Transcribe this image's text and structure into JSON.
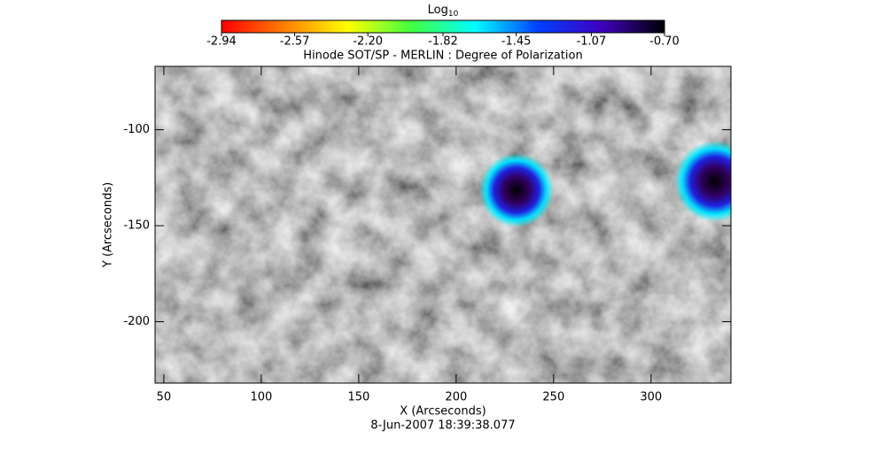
{
  "chart_data": {
    "type": "heatmap",
    "title": "Hinode SOT/SP - MERLIN : Degree of Polarization",
    "subtitle": "8-Jun-2007 18:39:38.077",
    "x_label": "X (Arcseconds)",
    "y_label": "Y (Arcseconds)",
    "xlim": [
      45.5,
      341
    ],
    "ylim": [
      -232,
      -67
    ],
    "xticks": [
      50,
      100,
      150,
      200,
      250,
      300
    ],
    "yticks": [
      -100,
      -150,
      -200
    ],
    "colorbar": {
      "label": "Log",
      "label_subscript": "10",
      "range": [
        -2.94,
        -0.7
      ],
      "ticks": [
        -2.94,
        -2.57,
        {
          "value": -2.2,
          "label": "-2.20"
        },
        -1.82,
        -1.45,
        -1.07,
        {
          "value": -0.7,
          "label": "-0.70"
        }
      ],
      "colors": [
        "#ff0000",
        "#ff8000",
        "#ffff00",
        "#40ff40",
        "#00ffff",
        "#0040ff",
        "#4000c0",
        "#000000"
      ]
    }
  }
}
